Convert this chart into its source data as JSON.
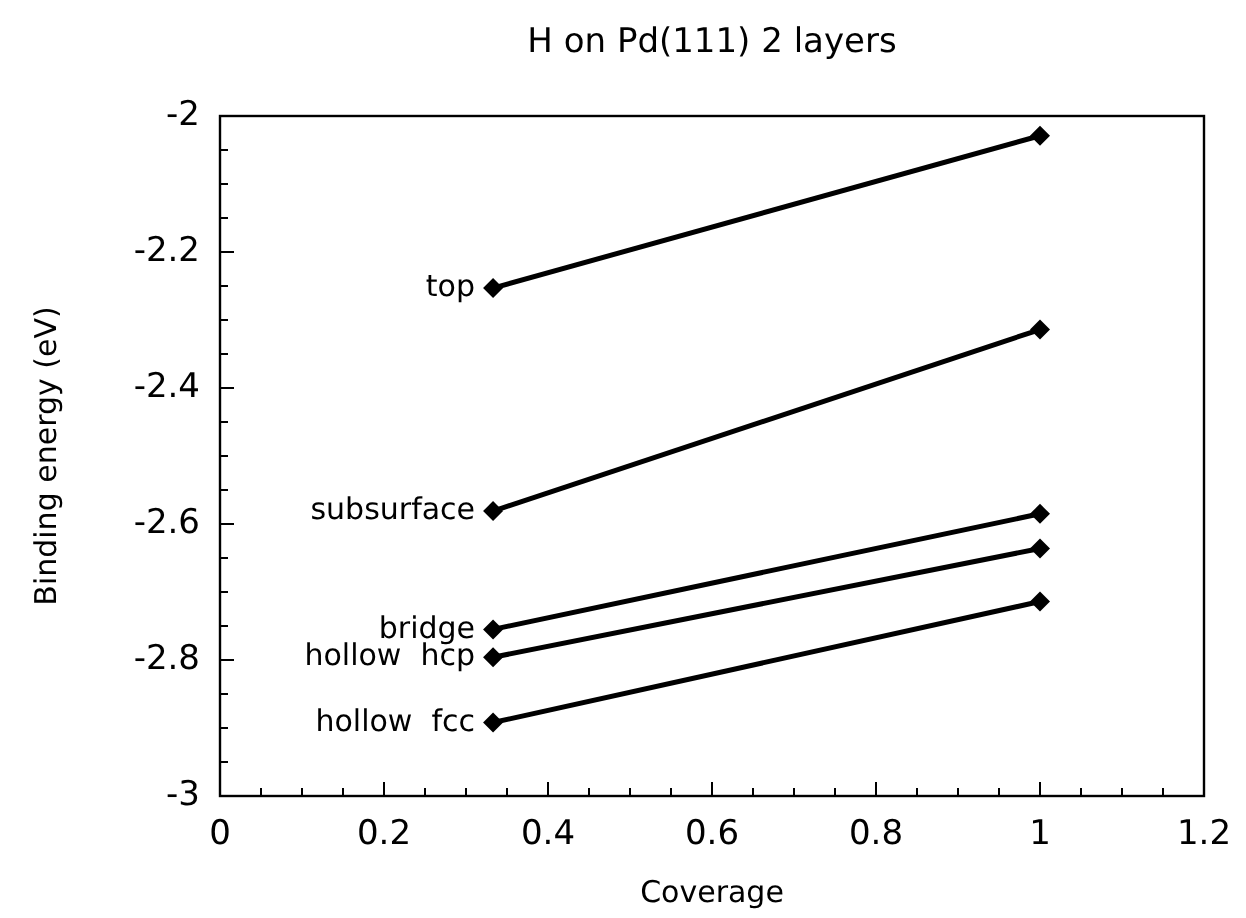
{
  "chart_data": {
    "type": "line",
    "title": "H on Pd(111) 2 layers",
    "xlabel": "Coverage",
    "ylabel": "Binding energy (eV)",
    "x": [
      0.333,
      1
    ],
    "series": [
      {
        "name": "top",
        "color": "#000000",
        "values": [
          -2.253,
          -2.029
        ]
      },
      {
        "name": "subsurface",
        "color": "#000000",
        "values": [
          -2.581,
          -2.314
        ]
      },
      {
        "name": "bridge",
        "color": "#000000",
        "values": [
          -2.755,
          -2.585
        ]
      },
      {
        "name": "hollow  hcp",
        "color": "#000000",
        "values": [
          -2.796,
          -2.636
        ]
      },
      {
        "name": "hollow  fcc",
        "color": "#000000",
        "values": [
          -2.892,
          -2.714
        ]
      }
    ],
    "xlim": [
      0,
      1.2
    ],
    "ylim": [
      -3,
      -2
    ],
    "xticks": [
      0,
      {
        "value": 0.05,
        "label": null
      },
      {
        "value": 0.1,
        "label": null
      },
      {
        "value": 0.15,
        "label": null
      },
      0.2,
      {
        "value": 0.25,
        "label": null
      },
      {
        "value": 0.3,
        "label": null
      },
      {
        "value": 0.35,
        "label": null
      },
      0.4,
      {
        "value": 0.45,
        "label": null
      },
      {
        "value": 0.5,
        "label": null
      },
      {
        "value": 0.55,
        "label": null
      },
      0.6,
      {
        "value": 0.65,
        "label": null
      },
      {
        "value": 0.7,
        "label": null
      },
      {
        "value": 0.75,
        "label": null
      },
      0.8,
      {
        "value": 0.85,
        "label": null
      },
      {
        "value": 0.9,
        "label": null
      },
      {
        "value": 0.95,
        "label": null
      },
      1,
      {
        "value": 1.05,
        "label": null
      },
      {
        "value": 1.1,
        "label": null
      },
      {
        "value": 1.15,
        "label": null
      },
      1.2
    ],
    "yticks": [
      -3,
      {
        "value": -2.95,
        "label": null
      },
      {
        "value": -2.9,
        "label": null
      },
      {
        "value": -2.85,
        "label": null
      },
      -2.8,
      {
        "value": -2.75,
        "label": null
      },
      {
        "value": -2.7,
        "label": null
      },
      {
        "value": -2.65,
        "label": null
      },
      -2.6,
      {
        "value": -2.55,
        "label": null
      },
      {
        "value": -2.5,
        "label": null
      },
      {
        "value": -2.45,
        "label": null
      },
      -2.4,
      {
        "value": -2.35,
        "label": null
      },
      {
        "value": -2.3,
        "label": null
      },
      {
        "value": -2.25,
        "label": null
      },
      -2.2,
      {
        "value": -2.15,
        "label": null
      },
      {
        "value": -2.1,
        "label": null
      },
      {
        "value": -2.05,
        "label": null
      },
      -2
    ],
    "grid": false,
    "marker": "diamond",
    "line_style": "solid"
  }
}
